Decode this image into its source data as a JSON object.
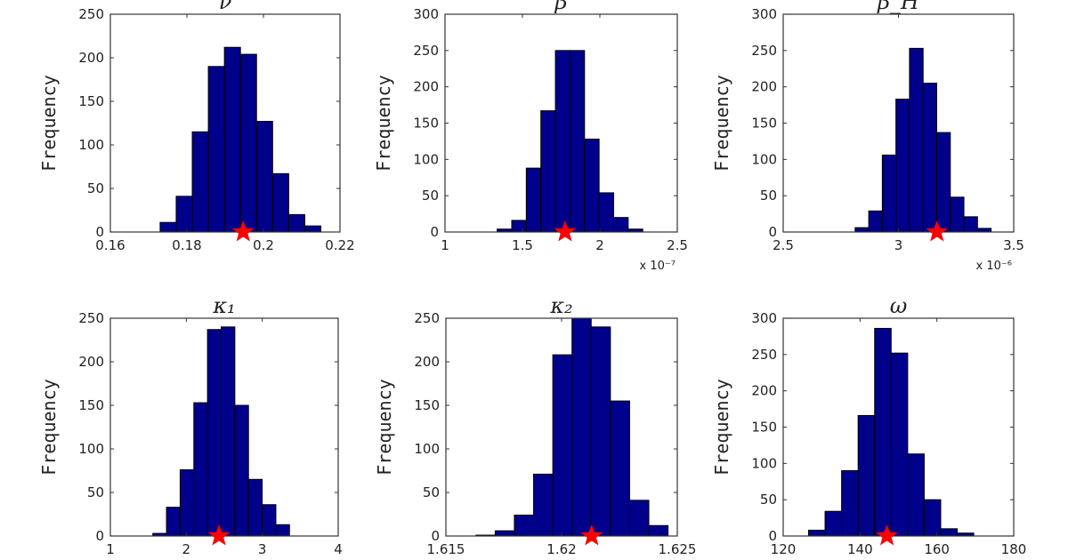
{
  "chart_data": [
    {
      "type": "bar",
      "title": "ν",
      "ylabel": "Frequency",
      "xlim": [
        0.16,
        0.22
      ],
      "ylim": [
        0,
        250
      ],
      "xticks": [
        "0.16",
        "0.18",
        "0.2",
        "0.22"
      ],
      "yticks": [
        "0",
        "50",
        "100",
        "150",
        "200",
        "250"
      ],
      "x_multiplier": "",
      "bin_start": 0.173,
      "bin_width": 0.0042,
      "values": [
        11,
        41,
        115,
        190,
        212,
        204,
        127,
        67,
        20,
        7
      ],
      "marker_x": 0.1947
    },
    {
      "type": "bar",
      "title": "β",
      "ylabel": "Frequency",
      "xlim": [
        1,
        2.5
      ],
      "ylim": [
        0,
        300
      ],
      "xticks": [
        "1",
        "1.5",
        "2",
        "2.5"
      ],
      "yticks": [
        "0",
        "50",
        "100",
        "150",
        "200",
        "250",
        "300"
      ],
      "x_multiplier": "x 10⁻⁷",
      "bin_start": 1.337,
      "bin_width": 0.094,
      "values": [
        4,
        16,
        88,
        167,
        250,
        250,
        128,
        54,
        20,
        4
      ],
      "marker_x": 1.775
    },
    {
      "type": "bar",
      "title": "β_H",
      "ylabel": "Frequency",
      "xlim": [
        2.5,
        3.5
      ],
      "ylim": [
        0,
        300
      ],
      "xticks": [
        "2.5",
        "3",
        "3.5"
      ],
      "yticks": [
        "0",
        "50",
        "100",
        "150",
        "200",
        "250",
        "300"
      ],
      "x_multiplier": "x 10⁻⁶",
      "bin_start": 2.812,
      "bin_width": 0.059,
      "values": [
        6,
        29,
        106,
        183,
        253,
        205,
        137,
        48,
        21,
        5
      ],
      "marker_x": 3.167
    },
    {
      "type": "bar",
      "title": "κ₁",
      "ylabel": "Frequency",
      "xlim": [
        1,
        4
      ],
      "ylim": [
        0,
        250
      ],
      "xticks": [
        "1",
        "2",
        "3",
        "4"
      ],
      "yticks": [
        "0",
        "50",
        "100",
        "150",
        "200",
        "250"
      ],
      "x_multiplier": "",
      "bin_start": 1.559,
      "bin_width": 0.18,
      "values": [
        3,
        33,
        76,
        153,
        237,
        240,
        150,
        65,
        36,
        13
      ],
      "marker_x": 2.43
    },
    {
      "type": "bar",
      "title": "κ₂",
      "ylabel": "Frequency",
      "xlim": [
        1.615,
        1.625
      ],
      "ylim": [
        0,
        250
      ],
      "xticks": [
        "1.615",
        "1.62",
        "1.625"
      ],
      "yticks": [
        "0",
        "50",
        "100",
        "150",
        "200",
        "250"
      ],
      "x_multiplier": "",
      "bin_start": 1.6163,
      "bin_width": 0.00083,
      "values": [
        1,
        6,
        24,
        71,
        208,
        250,
        240,
        155,
        41,
        12
      ],
      "marker_x": 1.6213
    },
    {
      "type": "bar",
      "title": "ω",
      "ylabel": "Frequency",
      "xlim": [
        120,
        180
      ],
      "ylim": [
        0,
        300
      ],
      "xticks": [
        "120",
        "140",
        "160",
        "180"
      ],
      "yticks": [
        "0",
        "50",
        "100",
        "150",
        "200",
        "250",
        "300"
      ],
      "x_multiplier": "",
      "bin_start": 126.6,
      "bin_width": 4.3,
      "values": [
        8,
        34,
        90,
        166,
        286,
        252,
        113,
        50,
        10,
        4
      ],
      "marker_x": 147.0
    }
  ],
  "colors": {
    "bar": "#00008B",
    "bar_edge": "#000000",
    "marker": "#FF0000",
    "axis": "#333333"
  }
}
